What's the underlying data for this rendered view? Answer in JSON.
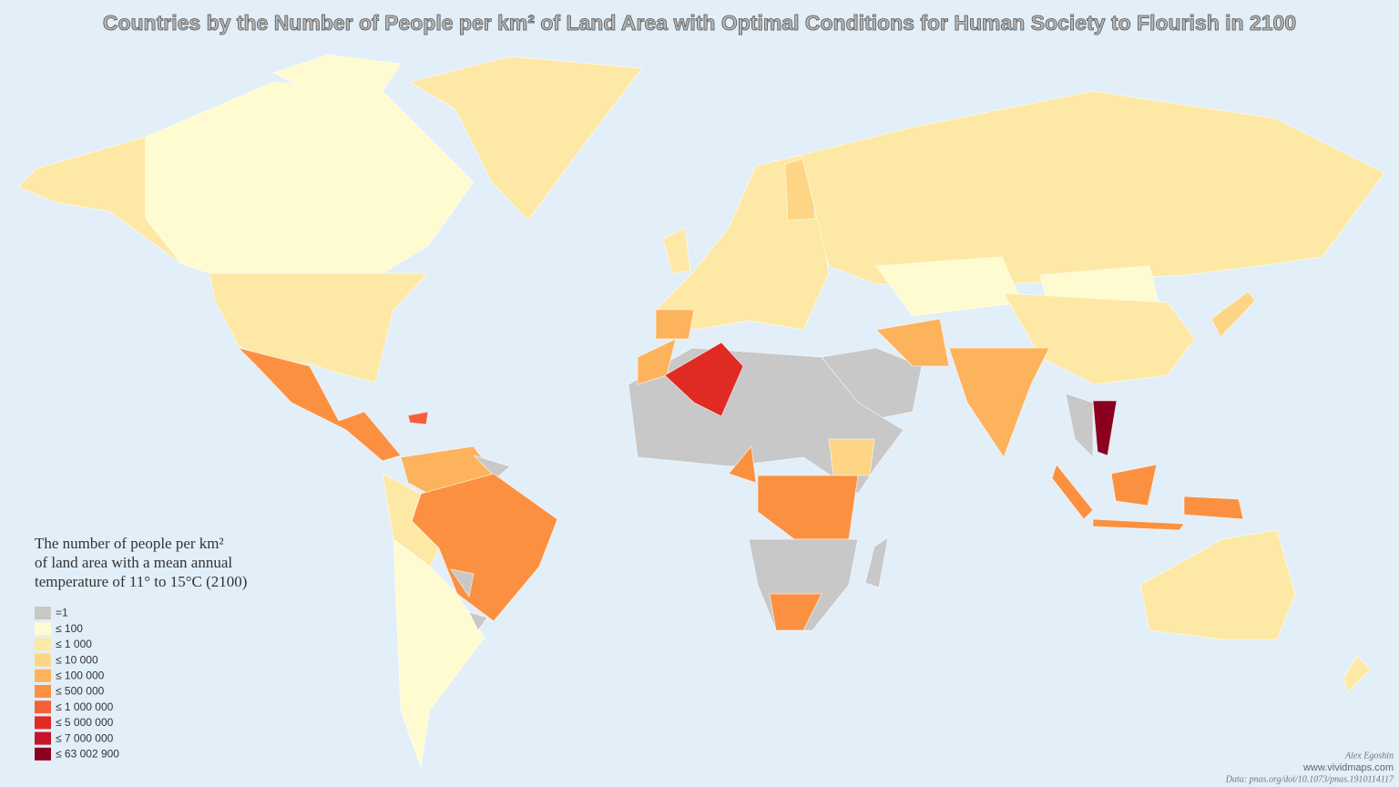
{
  "title": "Countries by the Number of People per km² of Land Area with Optimal Conditions for Human Society to Flourish in 2100",
  "legend": {
    "title_lines": [
      "The number of people per km²",
      "of land area with a mean annual",
      "temperature of 11° to 15°C (2100)"
    ],
    "items": [
      {
        "label": "=1",
        "color": "#c8c8c8"
      },
      {
        "label": "≤ 100",
        "color": "#fffbd0"
      },
      {
        "label": "≤ 1 000",
        "color": "#fde9a5"
      },
      {
        "label": "≤ 10 000",
        "color": "#fdd585"
      },
      {
        "label": "≤ 100 000",
        "color": "#fdb35c"
      },
      {
        "label": "≤ 500 000",
        "color": "#fb9140"
      },
      {
        "label": "≤ 1 000 000",
        "color": "#f5603a"
      },
      {
        "label": "≤ 5 000 000",
        "color": "#e02a24"
      },
      {
        "label": "≤ 7 000 000",
        "color": "#c4152c"
      },
      {
        "label": "≤ 63 002 900",
        "color": "#8b0020"
      }
    ]
  },
  "credits": {
    "author": "Alex Egoshin",
    "site": "www.vividmaps.com",
    "source": "Data: pnas.org/doi/10.1073/pnas.1910114117"
  }
}
